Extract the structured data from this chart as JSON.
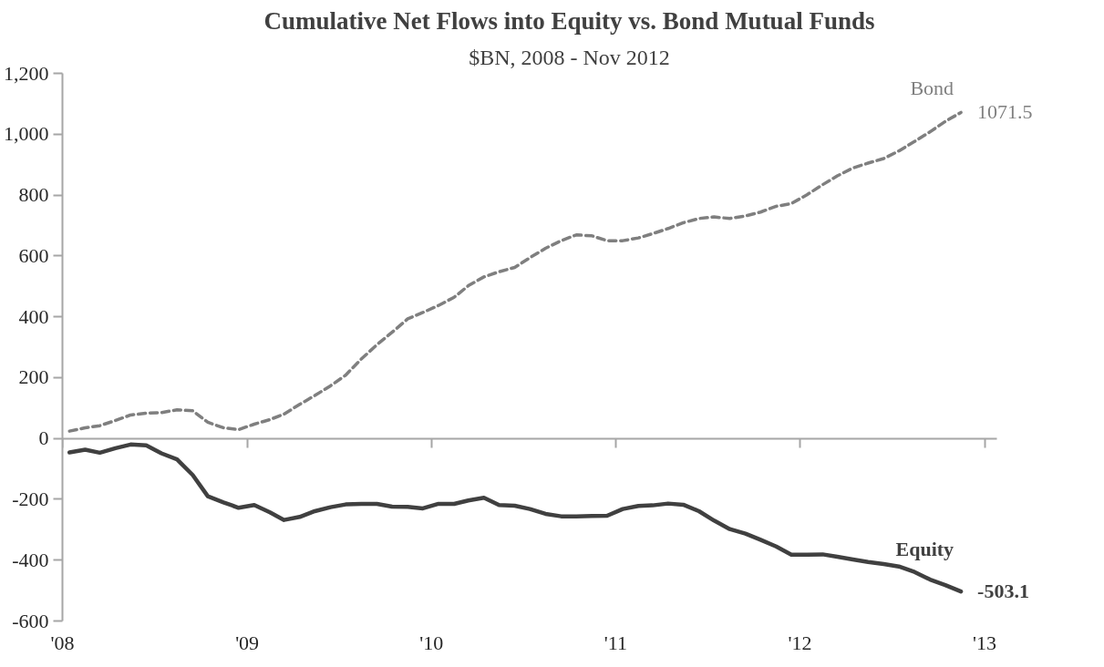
{
  "chart_data": {
    "type": "line",
    "title": "Cumulative Net Flows into Equity vs. Bond Mutual Funds",
    "subtitle": "$BN, 2008 - Nov 2012",
    "x": [
      "2008-01-15",
      "2008-02-15",
      "2008-03-15",
      "2008-04-15",
      "2008-05-15",
      "2008-06-15",
      "2008-07-15",
      "2008-08-15",
      "2008-09-15",
      "2008-10-15",
      "2008-11-15",
      "2008-12-15",
      "2009-01-15",
      "2009-02-15",
      "2009-03-15",
      "2009-04-15",
      "2009-05-15",
      "2009-06-15",
      "2009-07-15",
      "2009-08-15",
      "2009-09-15",
      "2009-10-15",
      "2009-11-15",
      "2009-12-15",
      "2010-01-15",
      "2010-02-15",
      "2010-03-15",
      "2010-04-15",
      "2010-05-15",
      "2010-06-15",
      "2010-07-15",
      "2010-08-15",
      "2010-09-15",
      "2010-10-15",
      "2010-11-15",
      "2010-12-15",
      "2011-01-15",
      "2011-02-15",
      "2011-03-15",
      "2011-04-15",
      "2011-05-15",
      "2011-06-15",
      "2011-07-15",
      "2011-08-15",
      "2011-09-15",
      "2011-10-15",
      "2011-11-15",
      "2011-12-15",
      "2012-01-15",
      "2012-02-15",
      "2012-03-15",
      "2012-04-15",
      "2012-05-15",
      "2012-06-15",
      "2012-07-15",
      "2012-08-15",
      "2012-09-15",
      "2012-10-15",
      "2012-11-15"
    ],
    "series": [
      {
        "name": "Bond",
        "color": "#7f7f7f",
        "line_style": "dashed",
        "values": [
          24,
          35,
          42,
          59,
          77,
          83,
          85,
          94,
          91,
          53,
          35,
          29,
          47,
          62,
          80,
          112,
          141,
          173,
          208,
          261,
          308,
          349,
          393,
          414,
          437,
          464,
          502,
          531,
          548,
          562,
          594,
          625,
          650,
          669,
          666,
          650,
          650,
          659,
          673,
          690,
          709,
          723,
          728,
          723,
          731,
          744,
          763,
          772,
          801,
          834,
          863,
          889,
          905,
          920,
          945,
          976,
          1008,
          1042,
          1071.5
        ],
        "value_labels": [
          null,
          null,
          null,
          null,
          null,
          null,
          null,
          null,
          null,
          null,
          null,
          null,
          null,
          null,
          null,
          null,
          null,
          null,
          null,
          null,
          null,
          null,
          null,
          null,
          null,
          null,
          null,
          null,
          null,
          null,
          null,
          null,
          null,
          null,
          null,
          null,
          null,
          null,
          null,
          null,
          null,
          null,
          null,
          null,
          null,
          null,
          null,
          null,
          null,
          null,
          null,
          null,
          null,
          null,
          null,
          null,
          null,
          null,
          "1071.5"
        ]
      },
      {
        "name": "Equity",
        "color": "#404040",
        "line_style": "solid",
        "values": [
          -46,
          -37,
          -47,
          -32,
          -20,
          -23,
          -49,
          -69,
          -120,
          -190,
          -210,
          -228,
          -219,
          -243,
          -268,
          -258,
          -239,
          -226,
          -217,
          -215,
          -215,
          -224,
          -225,
          -230,
          -215,
          -215,
          -204,
          -195,
          -219,
          -221,
          -232,
          -248,
          -256,
          -256,
          -255,
          -254,
          -232,
          -222,
          -220,
          -214,
          -218,
          -239,
          -270,
          -298,
          -313,
          -333,
          -355,
          -382,
          -382,
          -381,
          -389,
          -398,
          -406,
          -413,
          -421,
          -439,
          -464,
          -482,
          -503.1
        ],
        "value_labels": [
          null,
          null,
          null,
          null,
          null,
          null,
          null,
          null,
          null,
          null,
          null,
          null,
          null,
          null,
          null,
          null,
          null,
          null,
          null,
          null,
          null,
          null,
          null,
          null,
          null,
          null,
          null,
          null,
          null,
          null,
          null,
          null,
          null,
          null,
          null,
          null,
          null,
          null,
          null,
          null,
          null,
          null,
          null,
          null,
          null,
          null,
          null,
          null,
          null,
          null,
          null,
          null,
          null,
          null,
          null,
          null,
          null,
          null,
          "-503.1"
        ]
      }
    ],
    "xlim": [
      "2008-01-01",
      "2013-01-25"
    ],
    "xticks": [
      {
        "value": "2008-01-01",
        "label": "'08"
      },
      {
        "value": "2009-01-01",
        "label": "'09"
      },
      {
        "value": "2010-01-01",
        "label": "'10"
      },
      {
        "value": "2011-01-01",
        "label": "'11"
      },
      {
        "value": "2012-01-01",
        "label": "'12"
      },
      {
        "value": "2013-01-01",
        "label": "'13"
      }
    ],
    "ylim": [
      -600,
      1200
    ],
    "yticks": [
      -600,
      -400,
      -200,
      0,
      200,
      400,
      600,
      800,
      {
        "value": 1000,
        "label": "1,000"
      },
      {
        "value": 1200,
        "label": "1,200"
      }
    ]
  }
}
